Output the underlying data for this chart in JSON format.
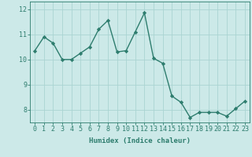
{
  "x": [
    0,
    1,
    2,
    3,
    4,
    5,
    6,
    7,
    8,
    9,
    10,
    11,
    12,
    13,
    14,
    15,
    16,
    17,
    18,
    19,
    20,
    21,
    22,
    23
  ],
  "y": [
    10.35,
    10.9,
    10.65,
    10.0,
    10.0,
    10.25,
    10.5,
    11.2,
    11.55,
    10.3,
    10.35,
    11.1,
    11.85,
    10.05,
    9.85,
    8.55,
    8.3,
    7.7,
    7.9,
    7.9,
    7.9,
    7.75,
    8.05,
    8.35
  ],
  "line_color": "#2e7d6e",
  "marker": "D",
  "marker_size": 2.2,
  "bg_color": "#cce9e8",
  "grid_color": "#aad4d2",
  "xlabel": "Humidex (Indice chaleur)",
  "ylim": [
    7.5,
    12.3
  ],
  "xlim": [
    -0.5,
    23.5
  ],
  "yticks": [
    8,
    9,
    10,
    11,
    12
  ],
  "xticks": [
    0,
    1,
    2,
    3,
    4,
    5,
    6,
    7,
    8,
    9,
    10,
    11,
    12,
    13,
    14,
    15,
    16,
    17,
    18,
    19,
    20,
    21,
    22,
    23
  ],
  "xlabel_fontsize": 6.5,
  "tick_fontsize": 6.0,
  "line_width": 1.0
}
